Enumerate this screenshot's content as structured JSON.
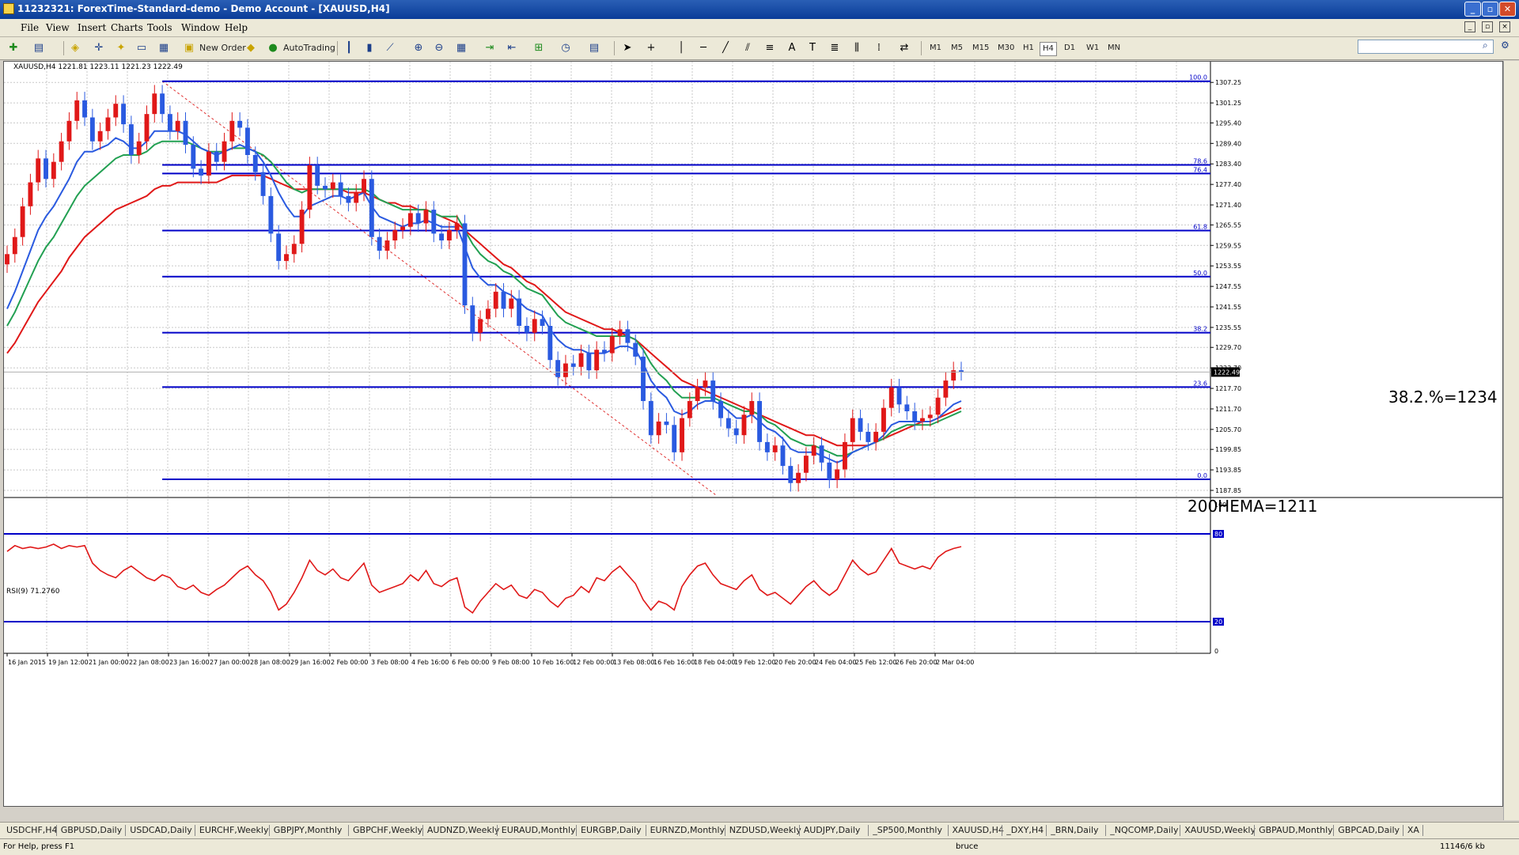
{
  "window": {
    "title": "11232321: ForexTime-Standard-demo - Demo Account - [XAUUSD,H4]"
  },
  "menu": [
    "File",
    "View",
    "Insert",
    "Charts",
    "Tools",
    "Window",
    "Help"
  ],
  "toolbar": {
    "new_order": "New Order",
    "autotrading": "AutoTrading",
    "timeframes": [
      "M1",
      "M5",
      "M15",
      "M30",
      "H1",
      "H4",
      "D1",
      "W1",
      "MN"
    ],
    "active_timeframe": "H4"
  },
  "chart": {
    "header": "XAUUSD,H4  1221.81 1223.11 1221.23 1222.49",
    "price_ticks": [
      "1307.25",
      "1301.25",
      "1295.40",
      "1289.40",
      "1283.40",
      "1277.40",
      "1271.40",
      "1265.55",
      "1259.55",
      "1253.55",
      "1247.55",
      "1241.55",
      "1235.55",
      "1229.70",
      "1223.70",
      "1217.70",
      "1211.70",
      "1205.70",
      "1199.85",
      "1193.85",
      "1187.85"
    ],
    "current_price": "1222.49",
    "fib_labels": [
      "100.0",
      "78.6",
      "76.4",
      "61.8",
      "50.0",
      "38.2",
      "23.6",
      "0.0"
    ],
    "annotation_fib": "38.2.%=1234",
    "annotation_ema": "200HEMA=1211",
    "time_ticks": [
      "16 Jan 2015",
      "19 Jan 12:00",
      "21 Jan 00:00",
      "22 Jan 08:00",
      "23 Jan 16:00",
      "27 Jan 00:00",
      "28 Jan 08:00",
      "29 Jan 16:00",
      "2 Feb 00:00",
      "3 Feb 08:00",
      "4 Feb 16:00",
      "6 Feb 00:00",
      "9 Feb 08:00",
      "10 Feb 16:00",
      "12 Feb 00:00",
      "13 Feb 08:00",
      "16 Feb 16:00",
      "18 Feb 04:00",
      "19 Feb 12:00",
      "20 Feb 20:00",
      "24 Feb 04:00",
      "25 Feb 12:00",
      "26 Feb 20:00",
      "2 Mar 04:00"
    ],
    "rsi_header": "RSI(9) 71.2760",
    "rsi_ticks": [
      "100",
      "80",
      "20",
      "0"
    ]
  },
  "tabs": [
    "USDCHF,H4",
    "GBPUSD,Daily",
    "USDCAD,Daily",
    "EURCHF,Weekly",
    "GBPJPY,Monthly",
    "GBPCHF,Weekly",
    "AUDNZD,Weekly",
    "EURAUD,Monthly",
    "EURGBP,Daily",
    "EURNZD,Monthly",
    "NZDUSD,Weekly",
    "AUDJPY,Daily",
    "_SP500,Monthly",
    "XAUUSD,H4",
    "_DXY,H4",
    "_BRN,Daily",
    "_NQCOMP,Daily",
    "XAUUSD,Weekly",
    "GBPAUD,Monthly",
    "GBPCAD,Daily",
    "XA"
  ],
  "status": {
    "help": "For Help, press F1",
    "profile": "bruce",
    "traffic": "11146/6 kb"
  },
  "chart_data": {
    "type": "candlestick",
    "symbol": "XAUUSD",
    "timeframe": "H4",
    "ylim": [
      1186,
      1311
    ],
    "fibonacci": [
      {
        "level": "100.0",
        "price": 1307.6
      },
      {
        "level": "78.6",
        "price": 1283.1
      },
      {
        "level": "76.4",
        "price": 1280.6
      },
      {
        "level": "61.8",
        "price": 1263.9
      },
      {
        "level": "50.0",
        "price": 1250.4
      },
      {
        "level": "38.2",
        "price": 1234
      },
      {
        "level": "23.6",
        "price": 1218.1
      },
      {
        "level": "0.0",
        "price": 1191.1
      }
    ],
    "closes": [
      1257,
      1262,
      1271,
      1278,
      1285,
      1279,
      1284,
      1290,
      1296,
      1302,
      1297,
      1290,
      1293,
      1297,
      1301,
      1295,
      1286,
      1290,
      1298,
      1304,
      1298,
      1293,
      1296,
      1289,
      1282,
      1280,
      1287,
      1284,
      1290,
      1296,
      1294,
      1286,
      1281,
      1274,
      1263,
      1255,
      1257,
      1260,
      1270,
      1283,
      1277,
      1276,
      1278,
      1274,
      1272,
      1275,
      1279,
      1262,
      1258,
      1261,
      1264,
      1265,
      1269,
      1266,
      1270,
      1263,
      1261,
      1264,
      1266,
      1242,
      1234,
      1238,
      1241,
      1246,
      1241,
      1244,
      1236,
      1234,
      1238,
      1236,
      1226,
      1221,
      1225,
      1224,
      1228,
      1223,
      1229,
      1228,
      1233,
      1235,
      1231,
      1227,
      1214,
      1204,
      1208,
      1207,
      1199,
      1209,
      1214,
      1218,
      1220,
      1214,
      1209,
      1206,
      1204,
      1210,
      1214,
      1202,
      1199,
      1201,
      1195,
      1190,
      1193,
      1198,
      1201,
      1196,
      1191,
      1194,
      1202,
      1209,
      1205,
      1202,
      1205,
      1212,
      1218,
      1213,
      1211,
      1208,
      1209,
      1210,
      1215,
      1220,
      1223,
      1222.5
    ],
    "ema_blue": [
      1241,
      1246,
      1252,
      1258,
      1264,
      1268,
      1271,
      1275,
      1279,
      1284,
      1287,
      1287,
      1288,
      1289,
      1291,
      1290,
      1288,
      1288,
      1290,
      1293,
      1293,
      1293,
      1293,
      1292,
      1290,
      1288,
      1287,
      1286,
      1287,
      1288,
      1289,
      1288,
      1287,
      1284,
      1280,
      1275,
      1271,
      1268,
      1268,
      1271,
      1272,
      1273,
      1274,
      1274,
      1273,
      1274,
      1275,
      1271,
      1268,
      1267,
      1266,
      1265,
      1266,
      1266,
      1267,
      1266,
      1265,
      1265,
      1265,
      1259,
      1253,
      1250,
      1248,
      1248,
      1246,
      1245,
      1243,
      1241,
      1240,
      1239,
      1235,
      1232,
      1230,
      1229,
      1229,
      1228,
      1228,
      1228,
      1229,
      1230,
      1230,
      1229,
      1225,
      1220,
      1217,
      1215,
      1211,
      1210,
      1211,
      1213,
      1214,
      1214,
      1213,
      1211,
      1209,
      1209,
      1210,
      1208,
      1206,
      1205,
      1203,
      1200,
      1199,
      1199,
      1199,
      1198,
      1197,
      1196,
      1197,
      1199,
      1200,
      1201,
      1202,
      1204,
      1207,
      1208,
      1208,
      1208,
      1208,
      1208,
      1209,
      1211,
      1213,
      1214
    ],
    "ema_green": [
      1236,
      1240,
      1245,
      1250,
      1255,
      1259,
      1262,
      1266,
      1270,
      1274,
      1277,
      1279,
      1281,
      1283,
      1285,
      1286,
      1286,
      1286,
      1287,
      1289,
      1290,
      1290,
      1290,
      1290,
      1289,
      1288,
      1287,
      1287,
      1287,
      1288,
      1288,
      1288,
      1287,
      1286,
      1284,
      1281,
      1278,
      1276,
      1275,
      1276,
      1276,
      1276,
      1276,
      1276,
      1276,
      1276,
      1276,
      1275,
      1273,
      1272,
      1271,
      1270,
      1270,
      1270,
      1270,
      1269,
      1268,
      1268,
      1268,
      1264,
      1260,
      1257,
      1255,
      1254,
      1252,
      1251,
      1249,
      1247,
      1246,
      1245,
      1242,
      1239,
      1237,
      1236,
      1235,
      1234,
      1233,
      1233,
      1233,
      1233,
      1233,
      1232,
      1229,
      1225,
      1222,
      1220,
      1217,
      1215,
      1215,
      1215,
      1215,
      1215,
      1214,
      1213,
      1212,
      1211,
      1211,
      1210,
      1208,
      1207,
      1205,
      1203,
      1202,
      1201,
      1201,
      1200,
      1199,
      1198,
      1198,
      1199,
      1200,
      1201,
      1202,
      1203,
      1205,
      1206,
      1207,
      1207,
      1207,
      1207,
      1208,
      1209,
      1210,
      1211
    ],
    "ema_red": [
      1228,
      1231,
      1235,
      1239,
      1243,
      1246,
      1249,
      1252,
      1256,
      1259,
      1262,
      1264,
      1266,
      1268,
      1270,
      1271,
      1272,
      1273,
      1274,
      1276,
      1277,
      1277,
      1278,
      1278,
      1278,
      1278,
      1278,
      1278,
      1279,
      1280,
      1280,
      1280,
      1280,
      1280,
      1279,
      1278,
      1277,
      1276,
      1276,
      1276,
      1276,
      1276,
      1276,
      1276,
      1275,
      1275,
      1275,
      1274,
      1273,
      1272,
      1272,
      1271,
      1271,
      1270,
      1270,
      1269,
      1268,
      1267,
      1266,
      1264,
      1262,
      1260,
      1258,
      1256,
      1254,
      1253,
      1251,
      1249,
      1248,
      1246,
      1244,
      1242,
      1240,
      1239,
      1238,
      1237,
      1236,
      1235,
      1235,
      1234,
      1233,
      1232,
      1230,
      1228,
      1226,
      1224,
      1222,
      1220,
      1219,
      1218,
      1217,
      1216,
      1215,
      1214,
      1213,
      1212,
      1211,
      1210,
      1209,
      1208,
      1207,
      1206,
      1205,
      1204,
      1204,
      1203,
      1202,
      1201,
      1201,
      1201,
      1201,
      1201,
      1202,
      1203,
      1204,
      1205,
      1206,
      1207,
      1208,
      1208,
      1209,
      1210,
      1211,
      1212
    ],
    "rsi": [
      68,
      72,
      70,
      71,
      70,
      71,
      73,
      70,
      72,
      71,
      72,
      60,
      55,
      52,
      50,
      55,
      58,
      54,
      50,
      48,
      52,
      50,
      44,
      42,
      45,
      40,
      38,
      42,
      45,
      50,
      55,
      58,
      52,
      48,
      40,
      28,
      32,
      40,
      50,
      62,
      55,
      52,
      56,
      50,
      48,
      54,
      60,
      45,
      40,
      42,
      44,
      46,
      52,
      48,
      55,
      46,
      44,
      48,
      50,
      30,
      26,
      34,
      40,
      46,
      42,
      45,
      38,
      36,
      42,
      40,
      34,
      30,
      36,
      38,
      44,
      40,
      50,
      48,
      54,
      58,
      52,
      46,
      35,
      28,
      34,
      32,
      28,
      44,
      52,
      58,
      60,
      52,
      46,
      44,
      42,
      48,
      52,
      42,
      38,
      40,
      36,
      32,
      38,
      44,
      48,
      42,
      38,
      42,
      52,
      62,
      56,
      52,
      54,
      62,
      70,
      60,
      58,
      56,
      58,
      56,
      64,
      68,
      70,
      71.3
    ]
  }
}
